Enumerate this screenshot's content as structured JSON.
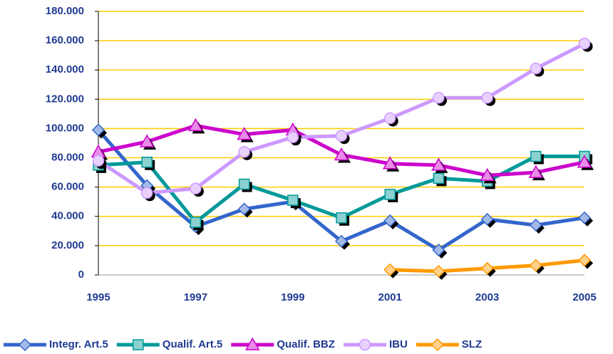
{
  "chart_data": {
    "type": "line",
    "x": [
      1995,
      1996,
      1997,
      1998,
      1999,
      2000,
      2001,
      2002,
      2003,
      2004,
      2005
    ],
    "xlim": [
      1995,
      2005
    ],
    "xticks": [
      1995,
      1997,
      1999,
      2001,
      2003,
      2005
    ],
    "ylim": [
      0,
      180000
    ],
    "yticks": [
      0,
      {
        "value": 20000,
        "label": "20.000"
      },
      {
        "value": 40000,
        "label": "40.000"
      },
      {
        "value": 60000,
        "label": "60.000"
      },
      {
        "value": 80000,
        "label": "80.000"
      },
      {
        "value": 100000,
        "label": "100.000"
      },
      {
        "value": 120000,
        "label": "120.000"
      },
      {
        "value": 140000,
        "label": "140.000"
      },
      {
        "value": 160000,
        "label": "160.000"
      },
      {
        "value": 180000,
        "label": "180.000"
      }
    ],
    "grid": true,
    "grid_color": "#ffcc00",
    "legend": "bottom",
    "series": [
      {
        "name": "Integr. Art.5",
        "color": "#3366cc",
        "marker": "diamond",
        "values": [
          99000,
          61000,
          33000,
          45000,
          50000,
          23000,
          37000,
          17000,
          38000,
          34000,
          39000
        ]
      },
      {
        "name": "Qualif. Art.5",
        "color": "#009999",
        "marker": "square",
        "values": [
          75000,
          77000,
          36000,
          62000,
          51000,
          39000,
          55000,
          66000,
          64000,
          81000,
          81000
        ]
      },
      {
        "name": "Qualif. BBZ",
        "color": "#cc00cc",
        "marker": "triangle",
        "values": [
          84000,
          91000,
          102000,
          96000,
          99000,
          82000,
          76000,
          75000,
          68000,
          70000,
          77000
        ]
      },
      {
        "name": "IBU",
        "color": "#cc99ff",
        "marker": "circle",
        "values": [
          78000,
          56000,
          59000,
          84000,
          94000,
          95000,
          107000,
          121000,
          121000,
          141000,
          158000
        ]
      },
      {
        "name": "SLZ",
        "color": "#ff9900",
        "marker": "diamond",
        "values": [
          null,
          null,
          null,
          null,
          null,
          null,
          3500,
          2500,
          4500,
          6500,
          10000
        ]
      }
    ]
  }
}
